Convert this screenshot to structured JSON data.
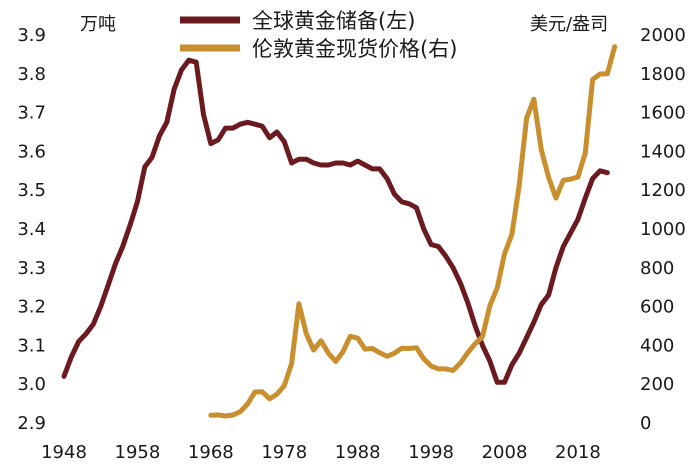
{
  "chart_data": {
    "type": "line",
    "left_axis": {
      "unit": "万吨",
      "ylim": [
        2.9,
        3.9
      ],
      "ticks": [
        "2.9",
        "3.0",
        "3.1",
        "3.2",
        "3.3",
        "3.4",
        "3.5",
        "3.6",
        "3.7",
        "3.8",
        "3.9"
      ]
    },
    "right_axis": {
      "unit": "美元/盎司",
      "ylim": [
        0,
        2000
      ],
      "ticks": [
        "0",
        "200",
        "400",
        "600",
        "800",
        "1000",
        "1200",
        "1400",
        "1600",
        "1800",
        "2000"
      ]
    },
    "x_axis": {
      "xlim": [
        1948,
        2024
      ],
      "ticks": [
        "1948",
        "1958",
        "1968",
        "1978",
        "1988",
        "1998",
        "2008",
        "2018"
      ]
    },
    "grid": false,
    "legend_placement": "top-center",
    "series": [
      {
        "name": "全球黄金储备(左)",
        "axis": "left",
        "color": "#6b1a1f",
        "x": [
          1948,
          1949,
          1950,
          1951,
          1952,
          1953,
          1954,
          1955,
          1956,
          1957,
          1958,
          1959,
          1960,
          1961,
          1962,
          1963,
          1964,
          1965,
          1966,
          1967,
          1968,
          1969,
          1970,
          1971,
          1972,
          1973,
          1974,
          1975,
          1976,
          1977,
          1978,
          1979,
          1980,
          1981,
          1982,
          1983,
          1984,
          1985,
          1986,
          1987,
          1988,
          1989,
          1990,
          1991,
          1992,
          1993,
          1994,
          1995,
          1996,
          1997,
          1998,
          1999,
          2000,
          2001,
          2002,
          2003,
          2004,
          2005,
          2006,
          2007,
          2008,
          2009,
          2010,
          2011,
          2012,
          2013,
          2014,
          2015,
          2016,
          2017,
          2018,
          2019,
          2020,
          2021,
          2022
        ],
        "values": [
          3.02,
          3.07,
          3.11,
          3.13,
          3.155,
          3.2,
          3.255,
          3.31,
          3.355,
          3.41,
          3.47,
          3.56,
          3.585,
          3.64,
          3.675,
          3.76,
          3.81,
          3.835,
          3.83,
          3.695,
          3.62,
          3.63,
          3.66,
          3.66,
          3.67,
          3.675,
          3.67,
          3.665,
          3.635,
          3.65,
          3.625,
          3.57,
          3.58,
          3.58,
          3.57,
          3.565,
          3.565,
          3.57,
          3.57,
          3.565,
          3.575,
          3.565,
          3.555,
          3.555,
          3.53,
          3.49,
          3.47,
          3.465,
          3.455,
          3.4,
          3.36,
          3.355,
          3.33,
          3.3,
          3.26,
          3.21,
          3.15,
          3.1,
          3.06,
          3.005,
          3.005,
          3.05,
          3.08,
          3.12,
          3.16,
          3.205,
          3.23,
          3.3,
          3.355,
          3.39,
          3.425,
          3.48,
          3.53,
          3.55,
          3.545
        ]
      },
      {
        "name": "伦敦黄金现货价格(右)",
        "axis": "right",
        "color": "#c98f2e",
        "x": [
          1968,
          1969,
          1970,
          1971,
          1972,
          1973,
          1974,
          1975,
          1976,
          1977,
          1978,
          1979,
          1980,
          1981,
          1982,
          1983,
          1984,
          1985,
          1986,
          1987,
          1988,
          1989,
          1990,
          1991,
          1992,
          1993,
          1994,
          1995,
          1996,
          1997,
          1998,
          1999,
          2000,
          2001,
          2002,
          2003,
          2004,
          2005,
          2006,
          2007,
          2008,
          2009,
          2010,
          2011,
          2012,
          2013,
          2014,
          2015,
          2016,
          2017,
          2018,
          2019,
          2020,
          2021,
          2022,
          2023
        ],
        "values": [
          40,
          42,
          36,
          41,
          58,
          98,
          160,
          161,
          125,
          148,
          193,
          306,
          615,
          460,
          376,
          424,
          361,
          317,
          368,
          447,
          437,
          381,
          384,
          362,
          344,
          360,
          385,
          384,
          388,
          331,
          294,
          279,
          279,
          271,
          310,
          363,
          409,
          445,
          604,
          696,
          872,
          972,
          1225,
          1571,
          1669,
          1411,
          1266,
          1160,
          1251,
          1257,
          1268,
          1393,
          1770,
          1799,
          1800,
          1940
        ]
      }
    ]
  }
}
